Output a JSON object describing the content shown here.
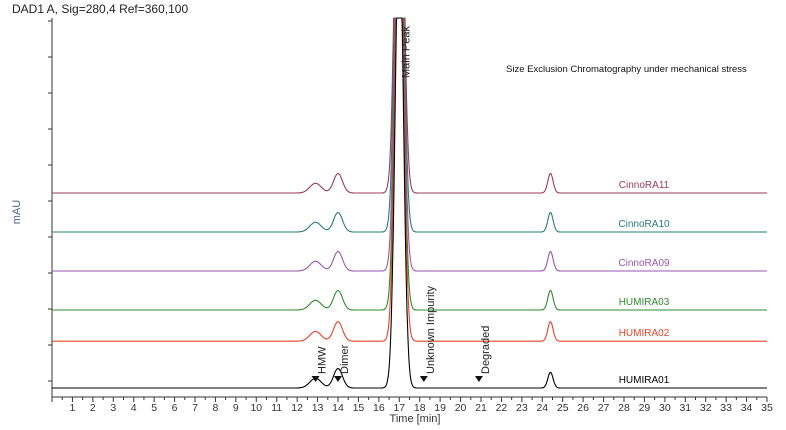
{
  "chart_data": {
    "type": "line",
    "signal_label": "DAD1 A, Sig=280,4 Ref=360,100",
    "title": "Size Exclusion Chromatography under mechanical stress",
    "xlabel": "Time [min]",
    "ylabel": "mAU",
    "xlim": [
      0,
      35
    ],
    "x_ticks": [
      1,
      2,
      3,
      4,
      5,
      6,
      7,
      8,
      9,
      10,
      11,
      12,
      13,
      14,
      15,
      16,
      17,
      18,
      19,
      20,
      21,
      22,
      23,
      24,
      25,
      26,
      27,
      28,
      29,
      30,
      31,
      32,
      33,
      34,
      35
    ],
    "series": [
      {
        "name": "CinnoRA11",
        "color": "#9b3b5a",
        "baseline": 5,
        "peaks": [
          {
            "x": 12.9,
            "h": 0.25
          },
          {
            "x": 14.0,
            "h": 0.5
          },
          {
            "x": 17.0,
            "h": 12
          },
          {
            "x": 24.4,
            "h": 0.5
          }
        ]
      },
      {
        "name": "CinnoRA10",
        "color": "#2a7b7b",
        "baseline": 4,
        "peaks": [
          {
            "x": 12.9,
            "h": 0.25
          },
          {
            "x": 14.0,
            "h": 0.5
          },
          {
            "x": 17.0,
            "h": 12
          },
          {
            "x": 24.4,
            "h": 0.5
          }
        ]
      },
      {
        "name": "CinnoRA09",
        "color": "#9a55b0",
        "baseline": 3,
        "peaks": [
          {
            "x": 12.9,
            "h": 0.25
          },
          {
            "x": 14.0,
            "h": 0.5
          },
          {
            "x": 17.0,
            "h": 12
          },
          {
            "x": 24.4,
            "h": 0.5
          }
        ]
      },
      {
        "name": "HUMIRA03",
        "color": "#2e8b2e",
        "baseline": 2,
        "peaks": [
          {
            "x": 12.9,
            "h": 0.25
          },
          {
            "x": 14.0,
            "h": 0.5
          },
          {
            "x": 17.0,
            "h": 12
          },
          {
            "x": 24.4,
            "h": 0.5
          }
        ]
      },
      {
        "name": "HUMIRA02",
        "color": "#e8432a",
        "baseline": 1.2,
        "peaks": [
          {
            "x": 12.9,
            "h": 0.25
          },
          {
            "x": 14.0,
            "h": 0.5
          },
          {
            "x": 17.0,
            "h": 12
          },
          {
            "x": 24.4,
            "h": 0.5
          }
        ]
      },
      {
        "name": "HUMIRA01",
        "color": "#000000",
        "baseline": 0,
        "peaks": [
          {
            "x": 12.9,
            "h": 0.25
          },
          {
            "x": 14.0,
            "h": 0.5
          },
          {
            "x": 17.0,
            "h": 12
          },
          {
            "x": 24.4,
            "h": 0.4
          }
        ]
      }
    ],
    "annotations": [
      {
        "text": "HMW",
        "x": 12.9
      },
      {
        "text": "Dimer",
        "x": 14.0
      },
      {
        "text": "Main Peak",
        "x": 17.0
      },
      {
        "text": "Unknown Impurity",
        "x": 18.2
      },
      {
        "text": "Degraded",
        "x": 20.9
      }
    ],
    "legend": "inline labels at right end of each trace"
  }
}
